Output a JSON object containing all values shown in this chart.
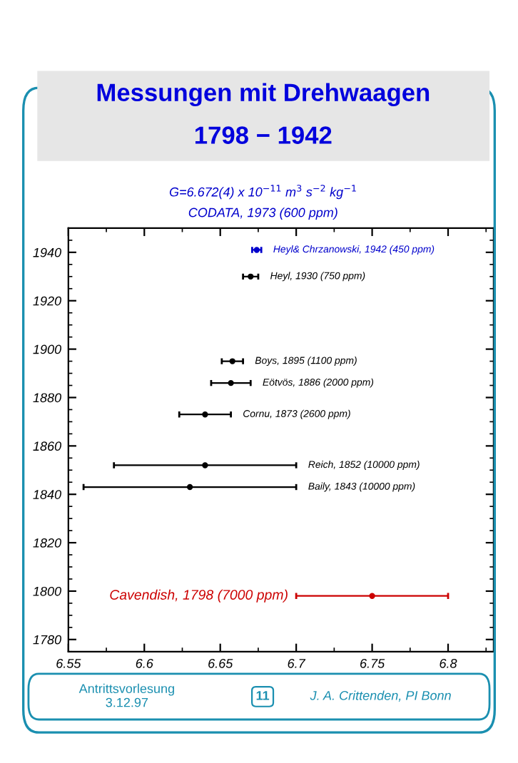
{
  "chart_data": {
    "type": "scatter",
    "title": "Messungen mit Drehwaagen\n\n1798 − 1942",
    "subtitle": "G=6.672(4) x 10$^{−11}$ m$^{3}$ s$^{−2}$ kg$^{−1}$\nCODATA, 1973 (600 ppm)",
    "series": [
      {
        "color": "#0000cc",
        "x": [
          6.674
        ],
        "values": [
          1941
        ],
        "xerrors": [
          0.003
        ]
      },
      {
        "color": "#000000",
        "x": [
          6.67,
          6.658,
          6.657,
          6.64,
          6.64,
          6.63
        ],
        "values": [
          1930,
          1895,
          1886,
          1873,
          1852,
          1843
        ],
        "xerrors": [
          0.005,
          0.007,
          0.013,
          0.017,
          0.06,
          [
            6.56,
            6.7
          ]
        ]
      },
      {
        "color": "#cc0000",
        "x": [
          6.75
        ],
        "values": [
          1798
        ],
        "xerrors": [
          0.05
        ]
      }
    ],
    "annotations": [
      {
        "text": "Heyl& Chrzanowski, 1942 (450 ppm)",
        "x": 6.677,
        "y": 1941
      },
      {
        "text": "Heyl, 1930 (750 ppm)",
        "x": 6.675,
        "y": 1930
      },
      {
        "text": "Boys, 1895 (1100 ppm)",
        "x": 6.665,
        "y": 1895
      },
      {
        "text": "Eötvös, 1886 (2000 ppm)",
        "x": 6.67,
        "y": 1886
      },
      {
        "text": "Cornu, 1873 (2600 ppm)",
        "x": 6.657,
        "y": 1873
      },
      {
        "text": "Reich, 1852 (10000 ppm)",
        "x": 6.7,
        "y": 1852
      },
      {
        "text": "Baily, 1843 (10000 ppm)",
        "x": 6.7,
        "y": 1843
      },
      {
        "text": "Cavendish, 1798 (7000 ppm)",
        "x": 6.7,
        "y": 1798
      },
      "Antrittsvorlesung\n3.12.97",
      "11",
      "J. A. Crittenden, PI Bonn"
    ],
    "xlim": [
      6.55,
      6.83
    ],
    "xticks": [
      6.55,
      6.6,
      6.65,
      6.7,
      6.75,
      6.8
    ],
    "ylim": [
      1775,
      1950
    ],
    "yticks": [
      1780,
      1800,
      1820,
      1840,
      1860,
      1880,
      1900,
      1920,
      1940
    ],
    "marker": "circle",
    "grid": false,
    "legend": false
  }
}
